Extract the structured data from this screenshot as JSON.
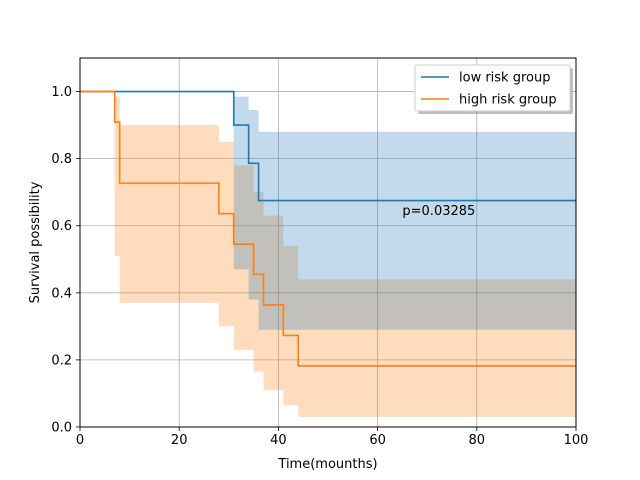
{
  "chart_data": {
    "type": "line",
    "subtype": "kaplan-meier step",
    "title": "",
    "xlabel": "Time(mounths)",
    "ylabel": "Survival possibility",
    "xlim": [
      0,
      100
    ],
    "ylim": [
      0,
      1.1
    ],
    "xticks": [
      0,
      20,
      40,
      60,
      80,
      100
    ],
    "xtick_labels": [
      "0",
      "20",
      "40",
      "60",
      "80",
      "100"
    ],
    "yticks": [
      0.0,
      0.2,
      0.4,
      0.6,
      0.8,
      1.0
    ],
    "ytick_labels": [
      "0.0",
      "0.2",
      "0.4",
      "0.6",
      "0.8",
      "1.0"
    ],
    "grid": true,
    "legend_position": "top-right",
    "annotation": {
      "text": "p=0.03285",
      "x": 65,
      "y": 0.65
    },
    "series": [
      {
        "name": "low risk group",
        "color": "#1f77b4",
        "steps": [
          {
            "x": 0,
            "y": 1.0
          },
          {
            "x": 31,
            "y": 0.9
          },
          {
            "x": 34,
            "y": 0.786
          },
          {
            "x": 36,
            "y": 0.675
          },
          {
            "x": 100,
            "y": 0.675
          }
        ],
        "ci": [
          {
            "x": 0,
            "lo": 1.0,
            "hi": 1.0
          },
          {
            "x": 31,
            "lo": 0.47,
            "hi": 0.985
          },
          {
            "x": 34,
            "lo": 0.38,
            "hi": 0.945
          },
          {
            "x": 36,
            "lo": 0.29,
            "hi": 0.88
          },
          {
            "x": 100,
            "lo": 0.29,
            "hi": 0.88
          }
        ]
      },
      {
        "name": "high risk group",
        "color": "#ff7f0e",
        "steps": [
          {
            "x": 0,
            "y": 1.0
          },
          {
            "x": 7,
            "y": 0.909
          },
          {
            "x": 8,
            "y": 0.727
          },
          {
            "x": 28,
            "y": 0.636
          },
          {
            "x": 31,
            "y": 0.545
          },
          {
            "x": 35,
            "y": 0.455
          },
          {
            "x": 37,
            "y": 0.364
          },
          {
            "x": 41,
            "y": 0.273
          },
          {
            "x": 44,
            "y": 0.182
          },
          {
            "x": 100,
            "y": 0.182
          }
        ],
        "ci": [
          {
            "x": 0,
            "lo": 1.0,
            "hi": 1.0
          },
          {
            "x": 7,
            "lo": 0.51,
            "hi": 0.985
          },
          {
            "x": 8,
            "lo": 0.37,
            "hi": 0.9
          },
          {
            "x": 28,
            "lo": 0.3,
            "hi": 0.85
          },
          {
            "x": 31,
            "lo": 0.23,
            "hi": 0.78
          },
          {
            "x": 35,
            "lo": 0.165,
            "hi": 0.7
          },
          {
            "x": 37,
            "lo": 0.11,
            "hi": 0.63
          },
          {
            "x": 41,
            "lo": 0.065,
            "hi": 0.54
          },
          {
            "x": 44,
            "lo": 0.03,
            "hi": 0.44
          },
          {
            "x": 100,
            "lo": 0.03,
            "hi": 0.44
          }
        ]
      }
    ]
  }
}
